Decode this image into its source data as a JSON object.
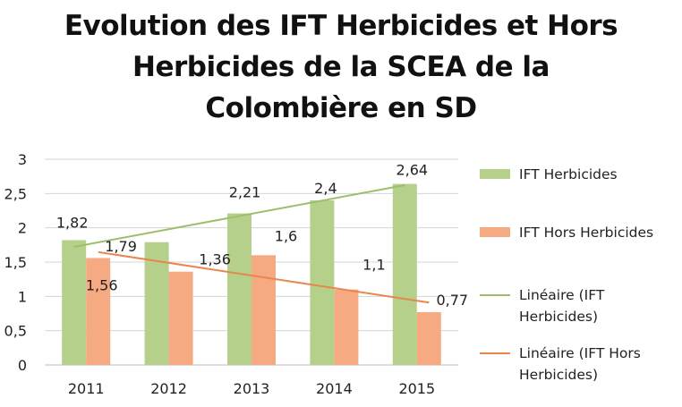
{
  "chart_data": {
    "type": "bar",
    "title_lines": [
      "Evolution des IFT Herbicides et Hors",
      "Herbicides de la SCEA de la",
      "Colombière en SD"
    ],
    "categories": [
      "2011",
      "2012",
      "2013",
      "2014",
      "2015"
    ],
    "series": [
      {
        "name": "IFT Herbicides",
        "values": [
          1.82,
          1.79,
          2.21,
          2.4,
          2.64
        ],
        "labels": [
          "1,82",
          "1,79",
          "2,21",
          "2,4",
          "2,64"
        ],
        "color": "#b5d08a"
      },
      {
        "name": "IFT Hors Herbicides",
        "values": [
          1.56,
          1.36,
          1.6,
          1.1,
          0.77
        ],
        "labels": [
          "1,56",
          "1,36",
          "1,6",
          "1,1",
          "0,77"
        ],
        "color": "#f5aa82"
      }
    ],
    "trendlines": [
      {
        "name": "Linéaire (IFT Herbicides)",
        "label_lines": [
          "Linéaire (IFT",
          "Herbicides)"
        ],
        "series_index": 0,
        "color": "#9cbf6a"
      },
      {
        "name": "Linéaire (IFT Hors Herbicides)",
        "label_lines": [
          "Linéaire (IFT Hors",
          "Herbicides)"
        ],
        "series_index": 1,
        "color": "#e8864d"
      }
    ],
    "yticks": [
      0,
      0.5,
      1,
      1.5,
      2,
      2.5,
      3
    ],
    "ytick_labels": [
      "0",
      "0,5",
      "1",
      "1,5",
      "2",
      "2,5",
      "3"
    ],
    "ylim": [
      0,
      3
    ],
    "xlabel": "",
    "ylabel": "",
    "grid": true,
    "legend_position": "right"
  }
}
